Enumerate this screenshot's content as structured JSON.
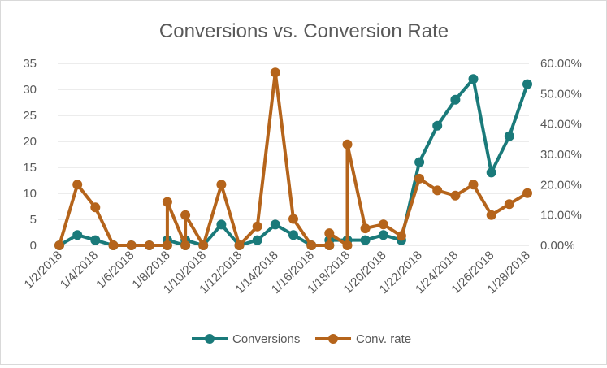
{
  "chart_data": {
    "type": "line",
    "title": "Conversions vs. Conversion Rate",
    "xlabel": "",
    "ylabel": "",
    "x": [
      "1/2/2018",
      "1/3/2018",
      "1/4/2018",
      "1/5/2018",
      "1/6/2018",
      "1/7/2018",
      "1/8/2018",
      "1/8/2018",
      "1/9/2018",
      "1/9/2018",
      "1/10/2018",
      "1/11/2018",
      "1/12/2018",
      "1/13/2018",
      "1/14/2018",
      "1/15/2018",
      "1/16/2018",
      "1/17/2018",
      "1/17/2018",
      "1/18/2018",
      "1/18/2018",
      "1/19/2018",
      "1/20/2018",
      "1/21/2018",
      "1/22/2018",
      "1/23/2018",
      "1/24/2018",
      "1/25/2018",
      "1/26/2018",
      "1/27/2018",
      "1/28/2018"
    ],
    "x_tick_labels": [
      "1/2/2018",
      "1/4/2018",
      "1/6/2018",
      "1/8/2018",
      "1/10/2018",
      "1/12/2018",
      "1/14/2018",
      "1/16/2018",
      "1/18/2018",
      "1/20/2018",
      "1/22/2018",
      "1/24/2018",
      "1/26/2018",
      "1/28/2018"
    ],
    "y_left": {
      "ylim": [
        0,
        35
      ],
      "ticks": [
        "0",
        "5",
        "10",
        "15",
        "20",
        "25",
        "30",
        "35"
      ]
    },
    "y_right": {
      "ylim": [
        0,
        60
      ],
      "ticks": [
        "0.00%",
        "10.00%",
        "20.00%",
        "30.00%",
        "40.00%",
        "50.00%",
        "60.00%"
      ]
    },
    "grid": "horizontal",
    "legend_position": "bottom",
    "series": [
      {
        "name": "Conversions",
        "axis": "left",
        "color": "#1a7a7a",
        "values": [
          0,
          2,
          1,
          0,
          0,
          0,
          0,
          1,
          0,
          1,
          0,
          4,
          0,
          1,
          4,
          2,
          0,
          0,
          1,
          1,
          1,
          1,
          2,
          1,
          16,
          23,
          28,
          32,
          14,
          21,
          31
        ]
      },
      {
        "name": "Conv. rate",
        "axis": "right",
        "color": "#b5641b",
        "values": [
          0,
          20,
          12.5,
          0,
          0,
          0,
          0,
          14.3,
          0,
          10,
          0,
          20,
          0,
          6.25,
          57,
          8.7,
          0,
          0,
          4,
          0,
          33.3,
          5.6,
          6.9,
          3.1,
          22,
          18.1,
          16.4,
          20,
          10,
          13.6,
          17.2
        ]
      }
    ]
  }
}
